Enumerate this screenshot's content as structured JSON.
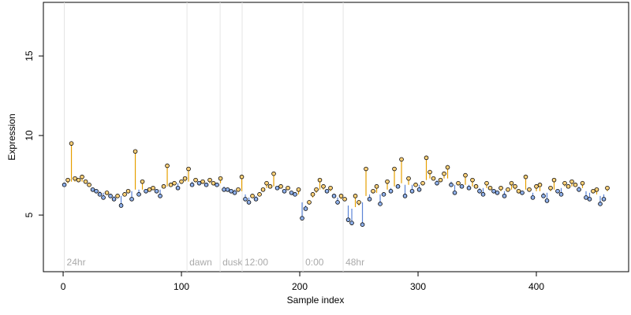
{
  "chart_data": {
    "type": "stem-scatter",
    "x_label": "Sample index",
    "y_label": "Expression",
    "xlim": [
      -16.7,
      478
    ],
    "ylim": [
      1.44,
      18.37
    ],
    "xticks": [
      0,
      100,
      200,
      300,
      400
    ],
    "yticks": [
      5,
      10,
      15
    ],
    "above_color": "#e69f00",
    "below_color": "#5b84d6",
    "point_fill": "#ffd27a",
    "point_fill_below": "#8fb0ea",
    "annotations": [
      {
        "x": 1,
        "label": "24hr"
      },
      {
        "x": 104.7,
        "label": "dawn"
      },
      {
        "x": 132.7,
        "label": "dusk"
      },
      {
        "x": 151.3,
        "label": "12:00"
      },
      {
        "x": 202.7,
        "label": "0:00"
      },
      {
        "x": 236.7,
        "label": "48hr"
      }
    ],
    "annotation_y": 2,
    "x": [
      1,
      4,
      7,
      10,
      13,
      16,
      19,
      22,
      25,
      28,
      31,
      34,
      37,
      40,
      43,
      46,
      49,
      52,
      55,
      58,
      61,
      64,
      67,
      70,
      73,
      76,
      79,
      82,
      85,
      88,
      91,
      94,
      97,
      100,
      103,
      106,
      109,
      112,
      115,
      118,
      121,
      124,
      127,
      130,
      133,
      136,
      139,
      142,
      145,
      148,
      151,
      154,
      157,
      160,
      163,
      166,
      169,
      172,
      175,
      178,
      181,
      184,
      187,
      190,
      193,
      196,
      199,
      202,
      205,
      208,
      211,
      214,
      217,
      220,
      223,
      226,
      229,
      232,
      235,
      238,
      241,
      244,
      247,
      250,
      253,
      256,
      259,
      262,
      265,
      268,
      271,
      274,
      277,
      280,
      283,
      286,
      289,
      292,
      295,
      298,
      301,
      304,
      307,
      310,
      313,
      316,
      319,
      322,
      325,
      328,
      331,
      334,
      337,
      340,
      343,
      346,
      349,
      352,
      355,
      358,
      361,
      364,
      367,
      370,
      373,
      376,
      379,
      382,
      385,
      388,
      391,
      394,
      397,
      400,
      403,
      406,
      409,
      412,
      415,
      418,
      421,
      424,
      427,
      430,
      433,
      436,
      439,
      442,
      445,
      448,
      451,
      454,
      457,
      460
    ],
    "values": [
      6.9,
      7.2,
      9.5,
      7.3,
      7.2,
      7.4,
      7.1,
      6.9,
      6.6,
      6.5,
      6.3,
      6.1,
      6.4,
      6.2,
      6.0,
      6.2,
      5.6,
      6.3,
      6.5,
      6.0,
      9.0,
      6.3,
      7.1,
      6.5,
      6.6,
      6.7,
      6.5,
      6.2,
      6.8,
      8.1,
      6.9,
      7.0,
      6.7,
      7.1,
      7.3,
      7.9,
      6.9,
      7.2,
      7.0,
      7.1,
      6.9,
      7.2,
      7.0,
      6.9,
      7.3,
      6.6,
      6.6,
      6.5,
      6.4,
      6.6,
      7.4,
      6.0,
      5.8,
      6.2,
      6.0,
      6.3,
      6.6,
      7.0,
      6.8,
      7.6,
      6.7,
      6.8,
      6.5,
      6.7,
      6.4,
      6.3,
      6.6,
      4.8,
      5.4,
      5.8,
      6.3,
      6.6,
      7.2,
      6.8,
      6.5,
      6.7,
      6.2,
      5.8,
      6.2,
      6.0,
      4.7,
      4.5,
      6.2,
      5.8,
      4.4,
      7.9,
      6.0,
      6.5,
      6.8,
      5.7,
      6.3,
      7.1,
      6.5,
      7.9,
      6.8,
      8.5,
      6.2,
      7.3,
      6.5,
      6.9,
      6.6,
      7.0,
      8.6,
      7.7,
      7.3,
      7.0,
      7.2,
      7.6,
      8.0,
      6.9,
      6.4,
      7.0,
      6.8,
      7.5,
      6.7,
      7.2,
      6.8,
      6.5,
      6.3,
      7.0,
      6.7,
      6.5,
      6.4,
      6.7,
      6.2,
      6.6,
      7.0,
      6.8,
      6.5,
      6.4,
      7.4,
      6.6,
      6.1,
      6.8,
      6.9,
      6.2,
      5.9,
      6.7,
      7.2,
      6.5,
      6.3,
      7.0,
      6.8,
      7.1,
      6.9,
      6.6,
      7.0,
      6.1,
      6.0,
      6.5,
      6.6,
      5.7,
      6.0,
      6.7
    ],
    "trend": [
      7.0,
      7.0,
      7.1,
      7.1,
      7.1,
      7.1,
      7.0,
      6.9,
      6.7,
      6.6,
      6.5,
      6.4,
      6.3,
      6.3,
      6.2,
      6.2,
      6.2,
      6.3,
      6.4,
      6.5,
      6.6,
      6.6,
      6.6,
      6.6,
      6.6,
      6.6,
      6.6,
      6.6,
      6.7,
      6.8,
      6.9,
      7.0,
      7.0,
      7.1,
      7.1,
      7.1,
      7.1,
      7.1,
      7.1,
      7.1,
      7.0,
      7.0,
      7.0,
      7.0,
      7.0,
      6.8,
      6.7,
      6.6,
      6.6,
      6.6,
      6.5,
      6.3,
      6.1,
      6.1,
      6.2,
      6.3,
      6.5,
      6.7,
      6.8,
      6.8,
      6.8,
      6.7,
      6.6,
      6.6,
      6.5,
      6.4,
      6.3,
      5.8,
      5.6,
      5.7,
      6.1,
      6.4,
      6.6,
      6.6,
      6.6,
      6.5,
      6.3,
      6.1,
      6.0,
      5.9,
      5.6,
      5.4,
      5.5,
      5.6,
      5.8,
      6.2,
      6.3,
      6.4,
      6.4,
      6.3,
      6.4,
      6.6,
      6.7,
      6.8,
      6.9,
      7.0,
      6.9,
      6.9,
      6.9,
      6.9,
      6.9,
      7.0,
      7.2,
      7.3,
      7.3,
      7.2,
      7.2,
      7.3,
      7.3,
      7.1,
      6.9,
      6.9,
      6.9,
      6.9,
      6.9,
      6.8,
      6.8,
      6.7,
      6.7,
      6.7,
      6.6,
      6.6,
      6.5,
      6.5,
      6.5,
      6.6,
      6.6,
      6.6,
      6.5,
      6.5,
      6.6,
      6.5,
      6.4,
      6.5,
      6.5,
      6.4,
      6.4,
      6.5,
      6.6,
      6.6,
      6.7,
      6.8,
      6.8,
      6.8,
      6.8,
      6.8,
      6.7,
      6.5,
      6.4,
      6.4,
      6.3,
      6.2,
      6.3,
      6.5
    ]
  }
}
